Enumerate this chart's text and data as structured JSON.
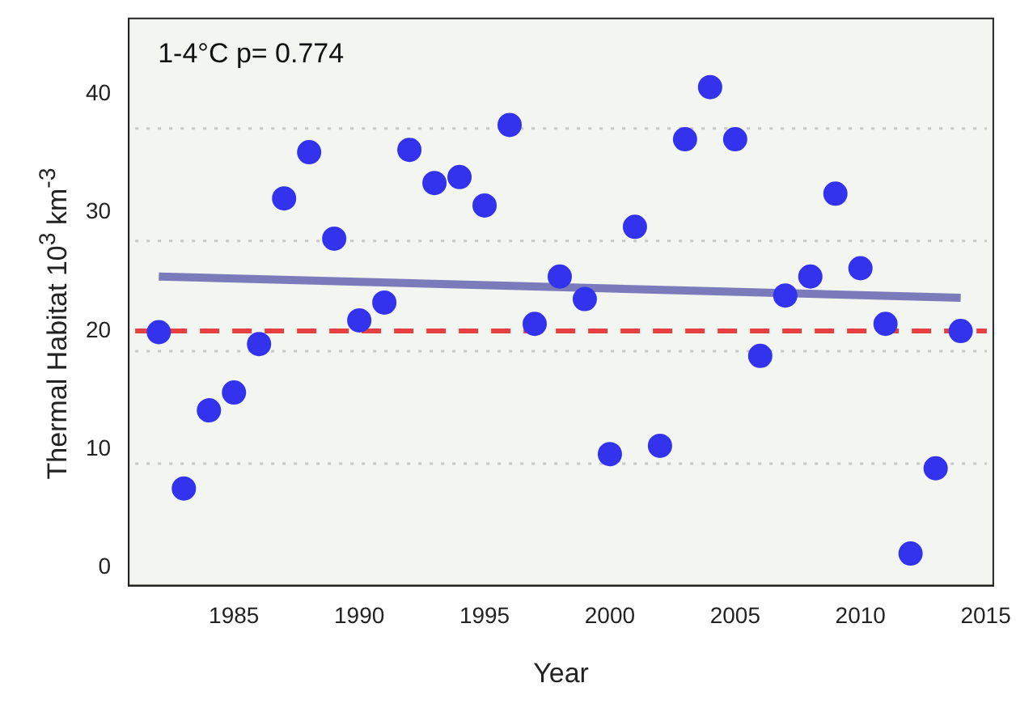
{
  "chart_data": {
    "type": "scatter",
    "xlabel": "Year",
    "ylabel": "Thermal Habitat  10$^{3}$ km$^{-3}$",
    "annotations": [
      "1-4°C p= 0.774"
    ],
    "x": [
      1982,
      1983,
      1984,
      1985,
      1986,
      1987,
      1988,
      1989,
      1990,
      1991,
      1992,
      1993,
      1994,
      1995,
      1996,
      1997,
      1998,
      1999,
      2000,
      2001,
      2002,
      2003,
      2004,
      2005,
      2006,
      2007,
      2008,
      2009,
      2010,
      2011,
      2012,
      2013,
      2014
    ],
    "series": [
      {
        "color": "#3333ee",
        "marker": "circle",
        "values": [
          19.9,
          6.7,
          13.3,
          14.8,
          18.9,
          31.2,
          35.1,
          27.8,
          20.9,
          22.4,
          35.3,
          32.5,
          33.0,
          30.6,
          37.4,
          20.6,
          24.6,
          22.7,
          9.6,
          28.8,
          10.3,
          36.2,
          40.6,
          36.2,
          17.9,
          23.0,
          24.6,
          31.6,
          25.3,
          20.6,
          1.2,
          8.4,
          20.0
        ]
      },
      {
        "type": "line",
        "marker": "none",
        "color": "#7b7bbb",
        "x": [
          1982,
          2014
        ],
        "values": [
          24.6,
          22.8
        ]
      }
    ],
    "ref_lines": [
      {
        "axis": "y",
        "value": 20,
        "color": "#e84040",
        "line_style": "dashed"
      },
      {
        "axis": "y",
        "value": 37.1,
        "color": "#c8c8c8",
        "line_style": "dotted"
      },
      {
        "axis": "y",
        "value": 27.6,
        "color": "#c8c8c8",
        "line_style": "dotted"
      },
      {
        "axis": "y",
        "value": 18.3,
        "color": "#c8c8c8",
        "line_style": "dotted"
      },
      {
        "axis": "y",
        "value": 8.8,
        "color": "#c8c8c8",
        "line_style": "dotted"
      }
    ],
    "xlim": [
      1980.8,
      2015.3
    ],
    "xticks": [
      1985,
      1990,
      1995,
      2000,
      2005,
      2010,
      2015
    ],
    "ylim": [
      -1.5,
      46.4
    ],
    "yticks": [
      0,
      10,
      20,
      30,
      40
    ],
    "grid": false,
    "legend": false
  }
}
